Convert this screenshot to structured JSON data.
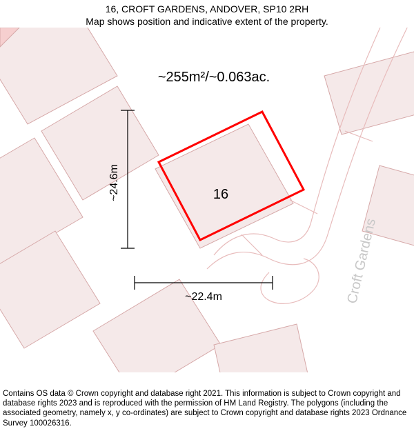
{
  "header": {
    "title": "16, CROFT GARDENS, ANDOVER, SP10 2RH",
    "subtitle": "Map shows position and indicative extent of the property."
  },
  "map": {
    "area_label": "~255m²/~0.063ac.",
    "height_label": "~24.6m",
    "width_label": "~22.4m",
    "property_number": "16",
    "street_name": "Croft Gardens",
    "colors": {
      "background": "#ffffff",
      "building_fill": "#f5e9e9",
      "building_stroke": "#d6a8a8",
      "road_outline": "#e8bcbc",
      "highlight_stroke": "#ff0000",
      "highlight_fill": "#ffffff",
      "dimension_color": "#000000",
      "street_text": "#c8c8c8"
    },
    "dimension_stroke_width": 1.2,
    "tick_len": 10,
    "highlight_stroke_width": 3,
    "building_stroke_width": 1,
    "road_stroke_width": 1.2,
    "area_fontsize": 20,
    "dim_fontsize": 16,
    "propnum_fontsize": 20,
    "street_fontsize": 20
  },
  "footer": {
    "text": "Contains OS data © Crown copyright and database right 2021. This information is subject to Crown copyright and database rights 2023 and is reproduced with the permission of HM Land Registry. The polygons (including the associated geometry, namely x, y co-ordinates) are subject to Crown copyright and database rights 2023 Ordnance Survey 100026316."
  }
}
